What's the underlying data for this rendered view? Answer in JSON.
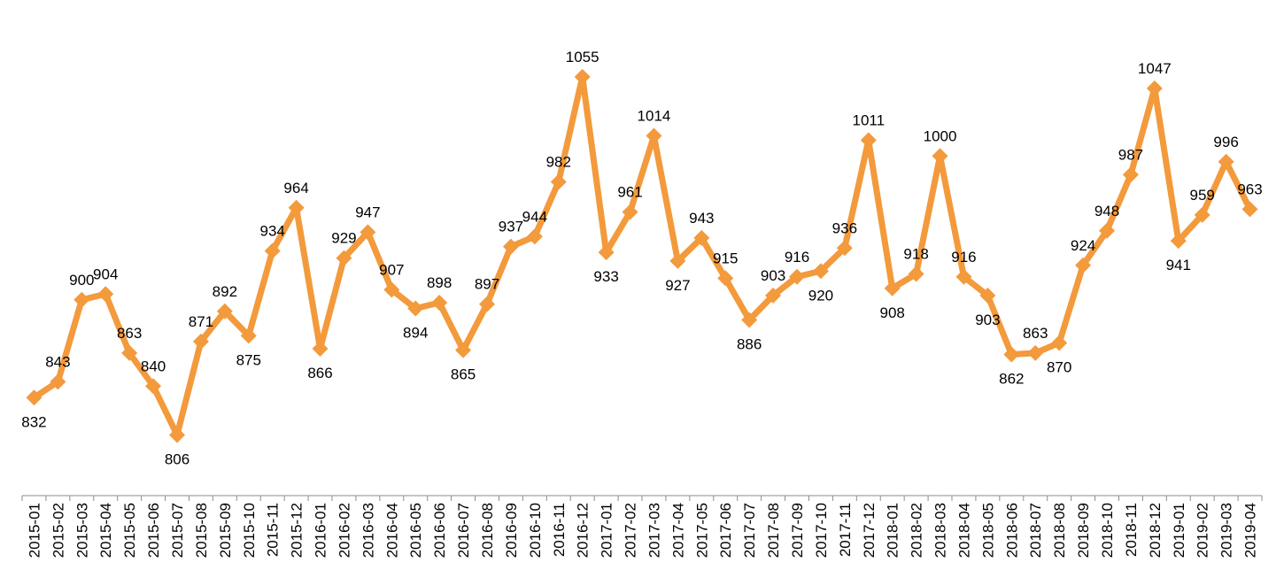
{
  "chart_data": {
    "type": "line",
    "title": "",
    "xlabel": "",
    "ylabel": "",
    "ylim": [
      770,
      1090
    ],
    "grid": false,
    "legend": "none",
    "line_color": "#f39a3c",
    "categories": [
      "2015-01",
      "2015-02",
      "2015-03",
      "2015-04",
      "2015-05",
      "2015-06",
      "2015-07",
      "2015-08",
      "2015-09",
      "2015-10",
      "2015-11",
      "2015-12",
      "2016-01",
      "2016-02",
      "2016-03",
      "2016-04",
      "2016-05",
      "2016-06",
      "2016-07",
      "2016-08",
      "2016-09",
      "2016-10",
      "2016-11",
      "2016-12",
      "2017-01",
      "2017-02",
      "2017-03",
      "2017-04",
      "2017-05",
      "2017-06",
      "2017-07",
      "2017-08",
      "2017-09",
      "2017-10",
      "2017-11",
      "2017-12",
      "2018-01",
      "2018-02",
      "2018-03",
      "2018-04",
      "2018-05",
      "2018-06",
      "2018-07",
      "2018-08",
      "2018-09",
      "2018-10",
      "2018-11",
      "2018-12",
      "2019-01",
      "2019-02",
      "2019-03",
      "2019-04"
    ],
    "values": [
      832,
      843,
      900,
      904,
      863,
      840,
      806,
      871,
      892,
      875,
      934,
      964,
      866,
      929,
      947,
      907,
      894,
      898,
      865,
      897,
      937,
      944,
      982,
      1055,
      933,
      961,
      1014,
      927,
      943,
      915,
      886,
      903,
      916,
      920,
      936,
      1011,
      908,
      918,
      1000,
      916,
      903,
      862,
      863,
      870,
      924,
      948,
      987,
      1047,
      941,
      959,
      996,
      963
    ],
    "label_positions": [
      "below",
      "above",
      "above",
      "above",
      "above",
      "above",
      "below",
      "above",
      "above",
      "below",
      "above",
      "above",
      "below",
      "above",
      "above",
      "above",
      "below",
      "above",
      "below",
      "above",
      "above",
      "above",
      "above",
      "above",
      "below",
      "above",
      "above",
      "below",
      "above",
      "above",
      "below",
      "above",
      "above",
      "below",
      "above",
      "above",
      "below",
      "above",
      "above",
      "above",
      "below",
      "below",
      "above",
      "below",
      "above",
      "above",
      "above",
      "above",
      "below",
      "above",
      "above",
      "above"
    ]
  }
}
